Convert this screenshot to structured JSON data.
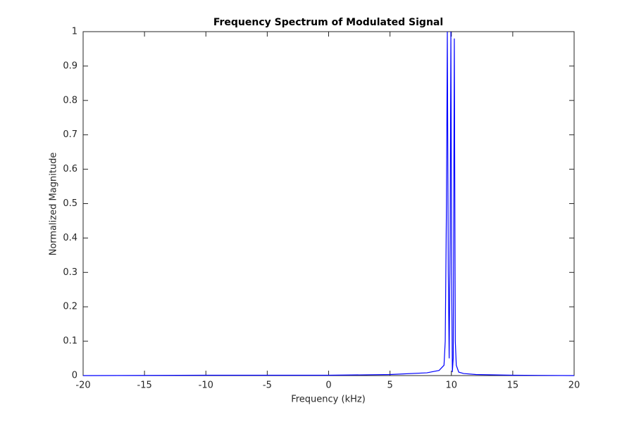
{
  "chart_data": {
    "type": "line",
    "title": "Frequency Spectrum of Modulated Signal",
    "x_label": "Frequency (kHz)",
    "y_label": "Normalized Magnitude",
    "x": [
      -20,
      -10,
      0,
      5,
      8,
      9,
      9.4,
      9.5,
      9.6,
      9.67,
      9.75,
      9.82,
      9.9,
      9.96,
      10.02,
      10.08,
      10.15,
      10.24,
      10.32,
      10.4,
      10.6,
      11,
      12,
      15,
      20
    ],
    "values": [
      0,
      0.001,
      0.001,
      0.003,
      0.008,
      0.015,
      0.03,
      0.1,
      0.5,
      1.0,
      0.3,
      0.05,
      0.4,
      1.0,
      0.3,
      0.01,
      0.05,
      0.98,
      0.1,
      0.03,
      0.01,
      0.006,
      0.003,
      0.001,
      0
    ],
    "color": "#0000ff",
    "xlim": [
      -20,
      20
    ],
    "xticks": [
      -20,
      -15,
      -10,
      -5,
      0,
      5,
      10,
      15,
      20
    ],
    "ylim": [
      0,
      1
    ],
    "yticks": [
      0,
      0.1,
      0.2,
      0.3,
      0.4,
      0.5,
      0.6,
      0.7,
      0.8,
      0.9,
      1
    ]
  }
}
